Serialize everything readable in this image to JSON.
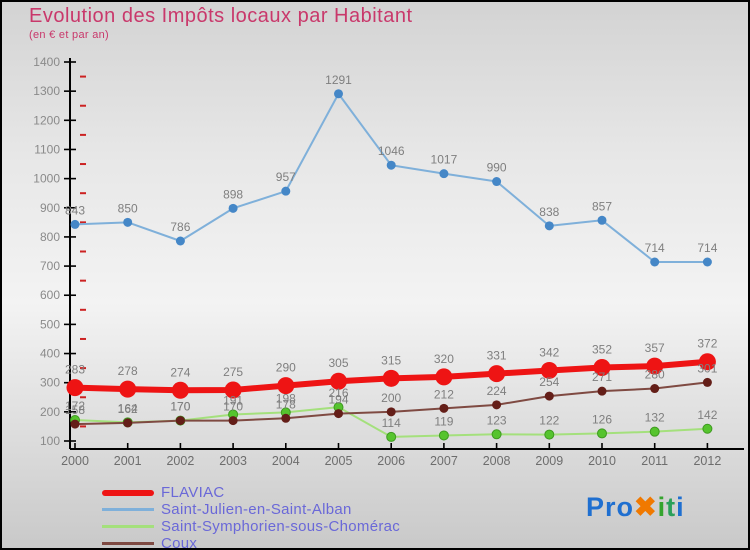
{
  "header": {
    "title": "Evolution des Impôts locaux par Habitant",
    "subtitle": "(en € et par an)",
    "title_color": "#c9386b"
  },
  "chart_data": {
    "type": "line",
    "x": [
      2000,
      2001,
      2002,
      2003,
      2004,
      2005,
      2006,
      2007,
      2008,
      2009,
      2010,
      2011,
      2012
    ],
    "series": [
      {
        "name": "FLAVIAC",
        "color": "#ee1414",
        "marker_color": "#ee1414",
        "line_width": 6,
        "marker_radius": 8.5,
        "values": [
          283,
          278,
          274,
          275,
          290,
          305,
          315,
          320,
          331,
          342,
          352,
          357,
          372
        ]
      },
      {
        "name": "Saint-Julien-en-Saint-Alban",
        "color": "#7fb0da",
        "marker_color": "#4587c7",
        "line_width": 2,
        "marker_radius": 4.5,
        "values": [
          843,
          850,
          786,
          898,
          957,
          1291,
          1046,
          1017,
          990,
          838,
          857,
          714,
          714
        ]
      },
      {
        "name": "Saint-Symphorien-sous-Chomérac",
        "color": "#a4e07c",
        "marker_color": "#56c42e",
        "marker_stroke": "#3e9a20",
        "line_width": 2,
        "marker_radius": 4.5,
        "values": [
          172,
          164,
          170,
          191,
          198,
          216,
          114,
          119,
          123,
          122,
          126,
          132,
          142
        ]
      },
      {
        "name": "Coux",
        "color": "#7f4a42",
        "marker_color": "#641e18",
        "line_width": 2,
        "marker_radius": 4.5,
        "values": [
          158,
          162,
          170,
          170,
          178,
          194,
          200,
          212,
          224,
          254,
          271,
          280,
          301
        ]
      }
    ],
    "ylim": [
      100,
      1400
    ],
    "ytick_step": 100,
    "yticks": [
      100,
      200,
      300,
      400,
      500,
      600,
      700,
      800,
      900,
      1000,
      1100,
      1200,
      1300,
      1400
    ],
    "axis_color": "#000000",
    "minor_tick_color": "#cc2222",
    "label_color": "#7f7f7f",
    "grid": false,
    "legend_position": "bottom-left"
  },
  "logo": {
    "name": "Proxiti",
    "parts": [
      {
        "text": "Pro",
        "color": "#1f6fd0"
      },
      {
        "text": "✖",
        "color": "#f07900"
      },
      {
        "text": "i",
        "color": "#35a42e"
      },
      {
        "text": "t",
        "color": "#2ba05a"
      },
      {
        "text": "i",
        "color": "#1f6fd0"
      }
    ]
  }
}
